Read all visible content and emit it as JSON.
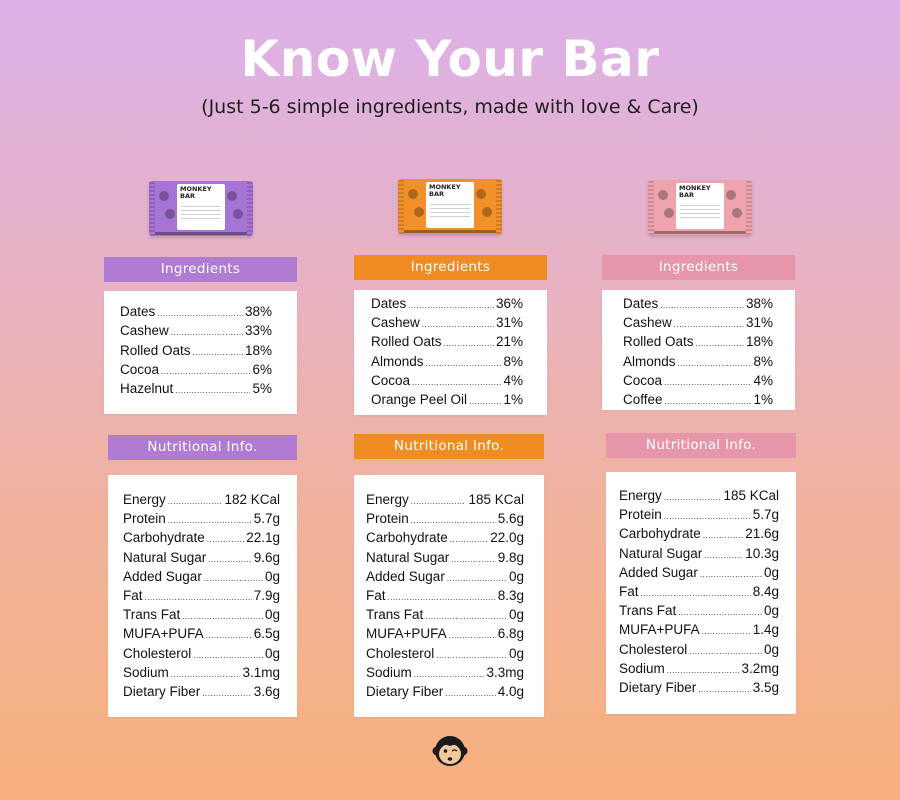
{
  "title": "Know Your Bar",
  "subtitle": "(Just 5-6 simple ingredients, made with love & Care)",
  "colors": {
    "purple": "#b07bd2",
    "orange": "#f08c22",
    "pink": "#e795aa"
  },
  "products": [
    {
      "pack_brand": "MONKEY\nBAR",
      "pack_color": "#a674d4",
      "header_color": "#b07bd2",
      "ingredients_title": "Ingredients",
      "ingredients": [
        {
          "name": "Dates",
          "value": "38%"
        },
        {
          "name": "Cashew",
          "value": "33%"
        },
        {
          "name": "Rolled Oats",
          "value": "18%"
        },
        {
          "name": "Cocoa",
          "value": "6%"
        },
        {
          "name": "Hazelnut",
          "value": "5%"
        }
      ],
      "nutrition_title": "Nutritional Info.",
      "nutrition": [
        {
          "name": "Energy",
          "value": "182 KCal"
        },
        {
          "name": "Protein",
          "value": "5.7g"
        },
        {
          "name": "Carbohydrate",
          "value": "22.1g"
        },
        {
          "name": "Natural Sugar",
          "value": "9.6g"
        },
        {
          "name": "Added Sugar",
          "value": "0g"
        },
        {
          "name": "Fat",
          "value": "7.9g"
        },
        {
          "name": "Trans Fat",
          "value": "0g"
        },
        {
          "name": "MUFA+PUFA",
          "value": "6.5g"
        },
        {
          "name": "Cholesterol",
          "value": "0g"
        },
        {
          "name": "Sodium",
          "value": "3.1mg"
        },
        {
          "name": "Dietary Fiber",
          "value": "3.6g"
        }
      ]
    },
    {
      "pack_brand": "MONKEY\nBAR",
      "pack_color": "#f2912a",
      "header_color": "#f08c22",
      "ingredients_title": "Ingredients",
      "ingredients": [
        {
          "name": "Dates",
          "value": "36%"
        },
        {
          "name": "Cashew",
          "value": "31%"
        },
        {
          "name": "Rolled Oats",
          "value": "21%"
        },
        {
          "name": "Almonds",
          "value": "8%"
        },
        {
          "name": "Cocoa",
          "value": "4%"
        },
        {
          "name": "Orange Peel Oil",
          "value": "1%"
        }
      ],
      "nutrition_title": "Nutritional Info.",
      "nutrition": [
        {
          "name": "Energy",
          "value": "185 KCal"
        },
        {
          "name": "Protein",
          "value": "5.6g"
        },
        {
          "name": "Carbohydrate",
          "value": "22.0g"
        },
        {
          "name": "Natural Sugar",
          "value": "9.8g"
        },
        {
          "name": "Added Sugar",
          "value": "0g"
        },
        {
          "name": "Fat",
          "value": "8.3g"
        },
        {
          "name": "Trans Fat",
          "value": "0g"
        },
        {
          "name": "MUFA+PUFA",
          "value": "6.8g"
        },
        {
          "name": "Cholesterol",
          "value": "0g"
        },
        {
          "name": "Sodium",
          "value": "3.3mg"
        },
        {
          "name": "Dietary Fiber",
          "value": "4.0g"
        }
      ]
    },
    {
      "pack_brand": "MONKEY\nBAR",
      "pack_color": "#efa3ae",
      "header_color": "#e795aa",
      "ingredients_title": "Ingredients",
      "ingredients": [
        {
          "name": "Dates",
          "value": "38%"
        },
        {
          "name": "Cashew",
          "value": "31%"
        },
        {
          "name": "Rolled Oats",
          "value": "18%"
        },
        {
          "name": "Almonds",
          "value": "8%"
        },
        {
          "name": "Cocoa",
          "value": "4%"
        },
        {
          "name": "Coffee",
          "value": "1%"
        }
      ],
      "nutrition_title": "Nutritional Info.",
      "nutrition": [
        {
          "name": "Energy",
          "value": "185 KCal"
        },
        {
          "name": "Protein",
          "value": "5.7g"
        },
        {
          "name": "Carbohydrate",
          "value": "21.6g"
        },
        {
          "name": "Natural Sugar",
          "value": "10.3g"
        },
        {
          "name": "Added Sugar",
          "value": "0g"
        },
        {
          "name": "Fat",
          "value": "8.4g"
        },
        {
          "name": "Trans Fat",
          "value": "0g"
        },
        {
          "name": "MUFA+PUFA",
          "value": "1.4g"
        },
        {
          "name": "Cholesterol",
          "value": "0g"
        },
        {
          "name": "Sodium",
          "value": "3.2mg"
        },
        {
          "name": "Dietary Fiber",
          "value": "3.5g"
        }
      ]
    }
  ],
  "footer_logo_icon": "monkey-face-icon"
}
